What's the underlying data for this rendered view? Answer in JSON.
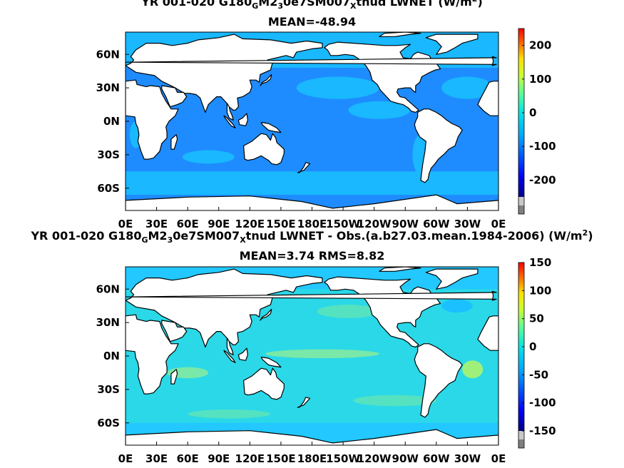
{
  "chart_data": [
    {
      "type": "heatmap",
      "title_parts": [
        "YR 001-020 G180",
        "G",
        "M2",
        "3",
        "0e7SM007",
        "X",
        "tnud  LWNET (W/m",
        "2",
        ")"
      ],
      "subtitle": "MEAN=-48.94",
      "x_ticks": [
        "0E",
        "30E",
        "60E",
        "90E",
        "120E",
        "150E",
        "180E",
        "150W",
        "120W",
        "90W",
        "60W",
        "30W",
        "0E"
      ],
      "y_ticks": [
        "60N",
        "30N",
        "0N",
        "30S",
        "60S"
      ],
      "colorbar_ticks": [
        "200",
        "100",
        "0",
        "-100",
        "-200"
      ],
      "colorbar_range": [
        -250,
        250
      ],
      "dominant_values": {
        "ocean_low_lat": -100,
        "ocean_high_lat": -60,
        "land": "missing"
      },
      "colors": {
        "ocean_main": "#1f8fff",
        "ocean_light": "#18bfff",
        "land": "#ffffff"
      }
    },
    {
      "type": "heatmap",
      "title_parts": [
        "YR 001-020 G180",
        "G",
        "M2",
        "3",
        "0e7SM007",
        "X",
        "tnud LWNET - Obs.(a.b27.03.mean.1984-2006) (W/m",
        "2",
        ")"
      ],
      "subtitle": "MEAN=3.74 RMS=8.82",
      "x_ticks": [
        "0E",
        "30E",
        "60E",
        "90E",
        "120E",
        "150E",
        "180E",
        "150W",
        "120W",
        "90W",
        "60W",
        "30W",
        "0E"
      ],
      "y_ticks": [
        "60N",
        "30N",
        "0N",
        "30S",
        "60S"
      ],
      "colorbar_ticks": [
        "150",
        "100",
        "50",
        "0",
        "-50",
        "-100",
        "-150"
      ],
      "colorbar_range": [
        -150,
        150
      ],
      "dominant_values": {
        "ocean": 5,
        "tropics": 15,
        "land": "missing"
      },
      "colors": {
        "ocean_main": "#33e0e0",
        "ocean_green": "#7fe8a0",
        "land": "#ffffff"
      }
    }
  ]
}
